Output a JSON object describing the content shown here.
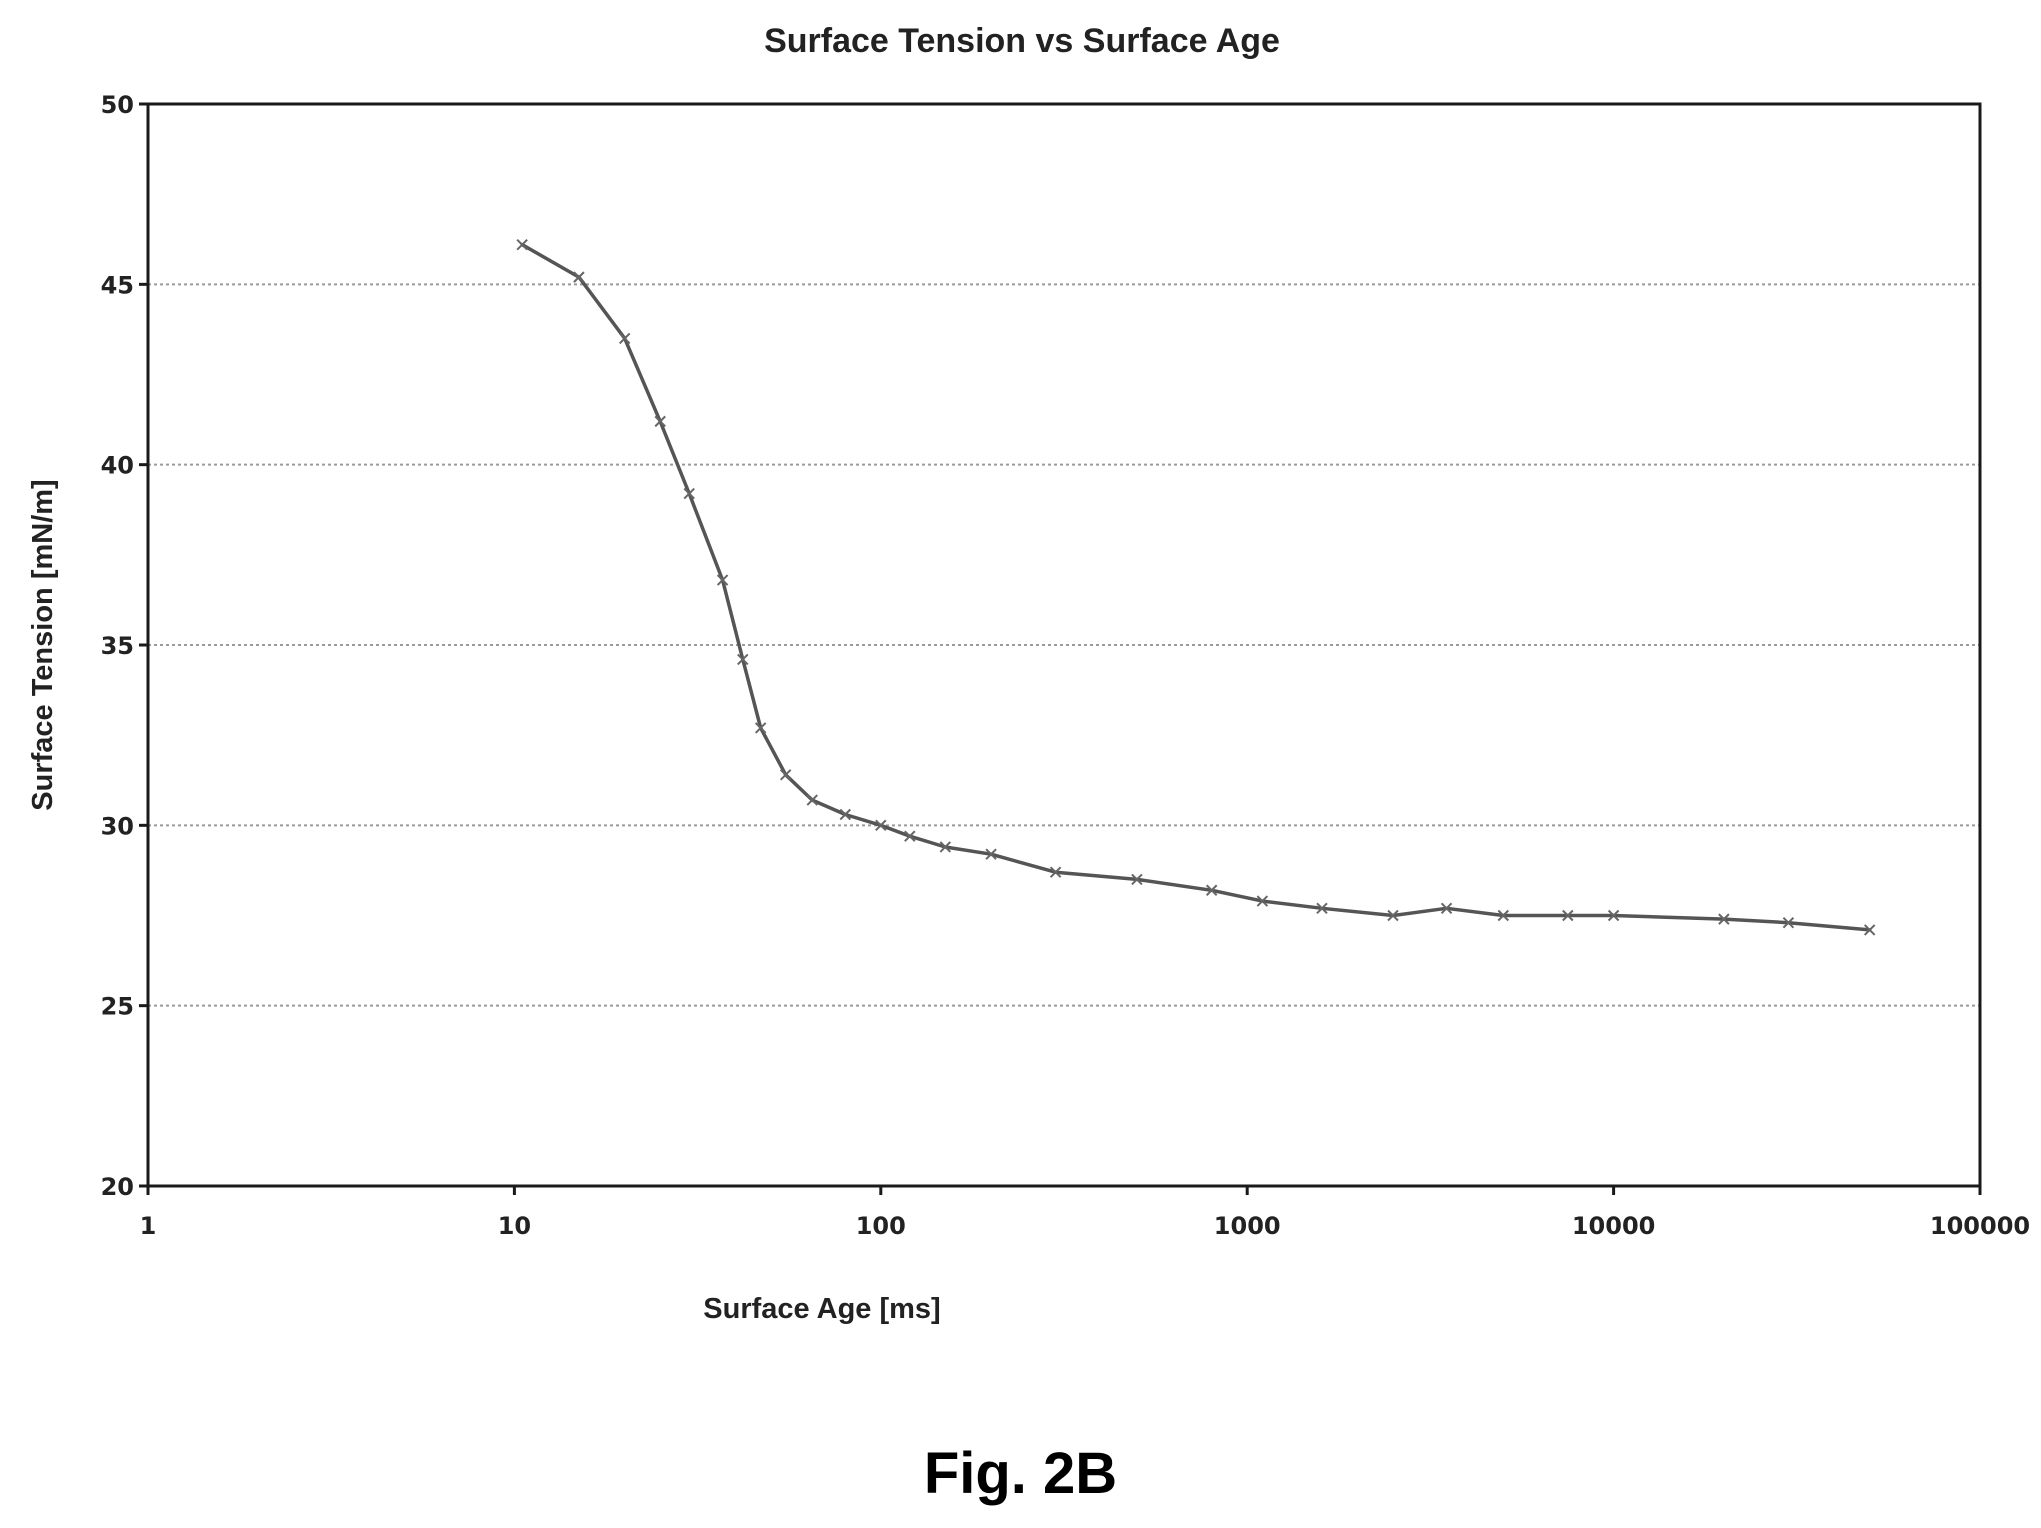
{
  "figure_caption": "Fig. 2B",
  "chart_data": {
    "type": "line",
    "title": "Surface Tension vs Surface Age",
    "xlabel": "Surface Age [ms]",
    "ylabel": "Surface Tension [mN/m]",
    "x_scale": "log",
    "xlim": [
      1,
      100000
    ],
    "ylim": [
      20,
      50
    ],
    "x_ticks": [
      "1",
      "10",
      "100",
      "1000",
      "10000",
      "100000"
    ],
    "y_ticks": [
      "20",
      "25",
      "30",
      "35",
      "40",
      "45",
      "50"
    ],
    "grid": "horizontal",
    "legend": "none",
    "series": [
      {
        "color": "#555555",
        "x": [
          10.5,
          15,
          20,
          25,
          30,
          37,
          42,
          47,
          55,
          65,
          80,
          100,
          120,
          150,
          200,
          300,
          500,
          800,
          1100,
          1600,
          2500,
          3500,
          5000,
          7500,
          10000,
          20000,
          30000,
          50000
        ],
        "y": [
          46.1,
          45.2,
          43.5,
          41.2,
          39.2,
          36.8,
          34.6,
          32.7,
          31.4,
          30.7,
          30.3,
          30.0,
          29.7,
          29.4,
          29.2,
          28.7,
          28.5,
          28.2,
          27.9,
          27.7,
          27.5,
          27.7,
          27.5,
          27.5,
          27.5,
          27.4,
          27.3,
          27.1
        ]
      }
    ]
  }
}
